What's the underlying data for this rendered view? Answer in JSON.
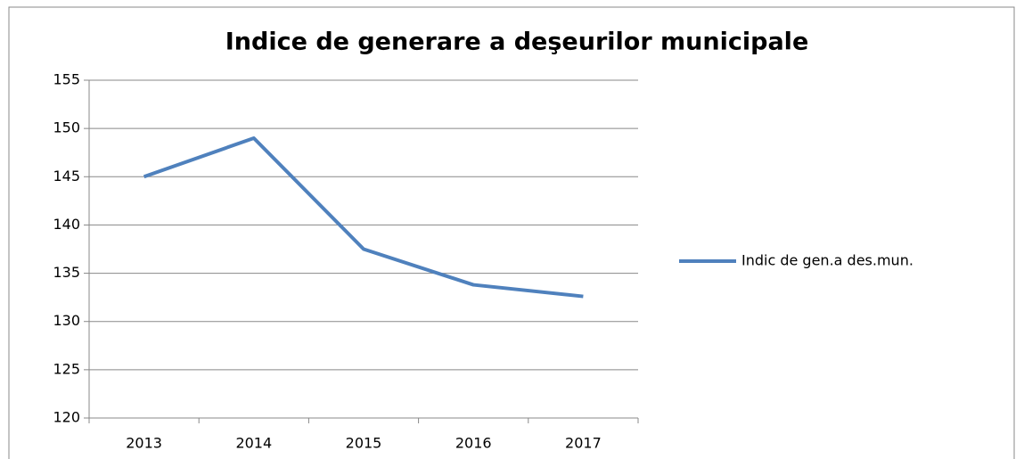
{
  "chart_data": {
    "type": "line",
    "title": "Indice de generare a deşeurilor municipale",
    "categories": [
      "2013",
      "2014",
      "2015",
      "2016",
      "2017"
    ],
    "series": [
      {
        "name": "Indic de gen.a des.mun.",
        "color": "#4f81bd",
        "values": [
          145,
          149,
          137.5,
          133.8,
          132.6
        ]
      }
    ],
    "ylim": [
      120,
      155
    ],
    "yticks": [
      120,
      125,
      130,
      135,
      140,
      145,
      150,
      155
    ],
    "grid": true,
    "legend": "right"
  }
}
